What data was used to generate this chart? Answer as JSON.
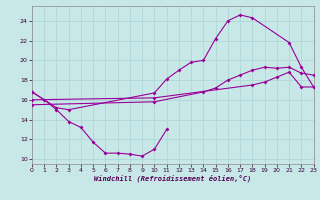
{
  "bg_color": "#c8e8e8",
  "line_color": "#990099",
  "grid_color": "#b0d8d8",
  "xlabel": "Windchill (Refroidissement éolien,°C)",
  "xlim": [
    0,
    23
  ],
  "ylim": [
    9.5,
    25.5
  ],
  "yticks": [
    10,
    12,
    14,
    16,
    18,
    20,
    22,
    24
  ],
  "xticks": [
    0,
    1,
    2,
    3,
    4,
    5,
    6,
    7,
    8,
    9,
    10,
    11,
    12,
    13,
    14,
    15,
    16,
    17,
    18,
    19,
    20,
    21,
    22,
    23
  ],
  "curve_low_x": [
    0,
    1,
    2,
    3,
    4,
    5,
    6,
    7,
    8,
    9,
    10,
    11
  ],
  "curve_low_y": [
    16.8,
    16.0,
    15.0,
    13.8,
    13.2,
    11.7,
    10.6,
    10.6,
    10.5,
    10.3,
    11.0,
    13.0
  ],
  "curve_high_x": [
    0,
    2,
    3,
    10,
    11,
    12,
    13,
    14,
    15,
    16,
    17,
    18,
    21,
    22,
    23
  ],
  "curve_high_y": [
    16.8,
    15.2,
    15.0,
    16.7,
    18.1,
    19.0,
    19.8,
    20.0,
    22.2,
    24.0,
    24.6,
    24.3,
    21.8,
    19.3,
    17.3
  ],
  "curve_mid1_x": [
    0,
    10,
    18,
    19,
    20,
    21,
    22,
    23
  ],
  "curve_mid1_y": [
    16.0,
    16.2,
    17.5,
    17.8,
    18.3,
    18.8,
    17.3,
    17.3
  ],
  "curve_mid2_x": [
    0,
    10,
    14,
    15,
    16,
    17,
    18,
    19,
    20,
    21,
    22,
    23
  ],
  "curve_mid2_y": [
    15.5,
    15.8,
    16.8,
    17.2,
    18.0,
    18.5,
    19.0,
    19.3,
    19.2,
    19.3,
    18.7,
    18.5
  ]
}
